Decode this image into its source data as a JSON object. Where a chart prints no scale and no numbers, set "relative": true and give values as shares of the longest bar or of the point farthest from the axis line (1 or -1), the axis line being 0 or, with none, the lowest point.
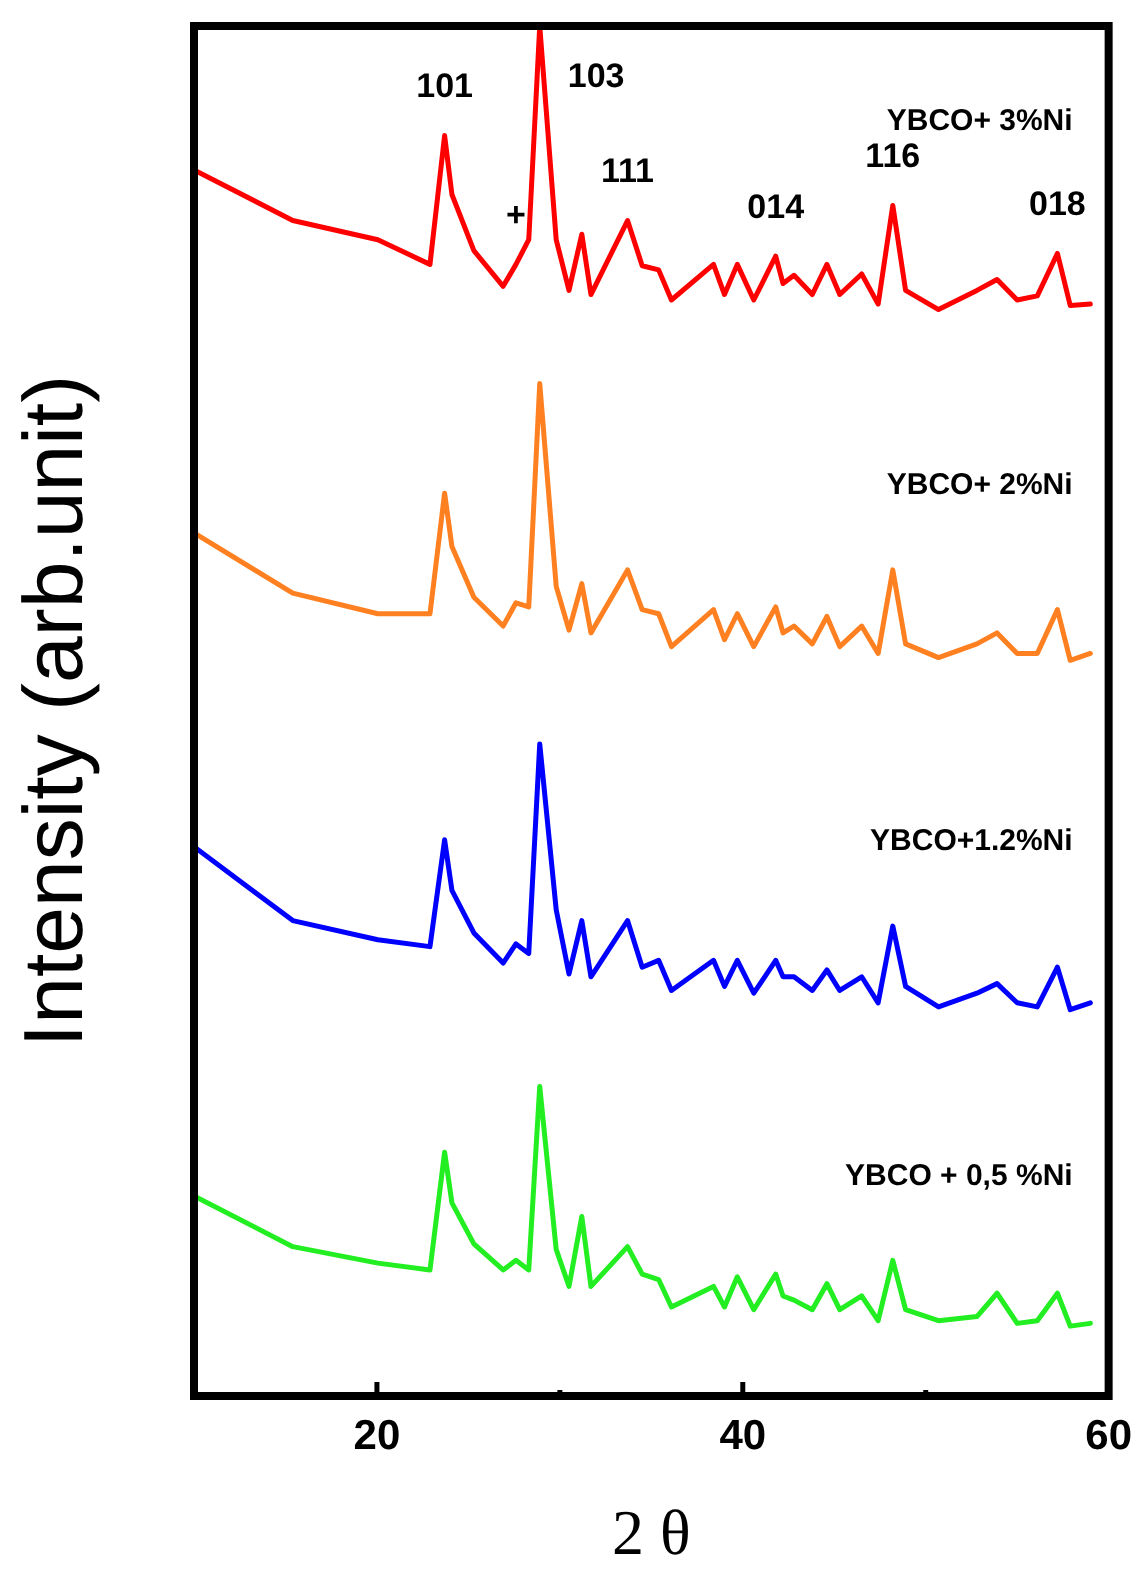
{
  "chart_data": {
    "type": "line",
    "relative": true,
    "xlabel": "2 θ",
    "ylabel": "Intensity (arb.unit)",
    "xlim": [
      10,
      60
    ],
    "xticks": [
      20,
      {
        "value": 30,
        "label": null
      },
      40,
      {
        "value": 50,
        "label": null
      },
      60
    ],
    "x": [
      10.0,
      15.4,
      20.05,
      22.9,
      23.7,
      24.1,
      25.3,
      26.9,
      27.6,
      28.3,
      28.9,
      29.8,
      30.5,
      31.2,
      31.7,
      33.7,
      34.5,
      35.4,
      36.1,
      38.4,
      39.0,
      39.7,
      40.6,
      41.8,
      42.2,
      42.8,
      43.8,
      44.6,
      45.3,
      46.5,
      47.4,
      48.2,
      48.9,
      50.7,
      52.8,
      53.9,
      55.0,
      56.1,
      57.2,
      57.9,
      59.0
    ],
    "series": [
      {
        "name": "YBCO+ 3%Ni",
        "color": "#ff0000",
        "values": [
          0.895,
          0.858,
          0.844,
          0.826,
          0.92,
          0.877,
          0.836,
          0.81,
          0.826,
          0.844,
          1.0,
          0.844,
          0.807,
          0.848,
          0.804,
          0.858,
          0.825,
          0.822,
          0.8,
          0.826,
          0.804,
          0.826,
          0.8,
          0.832,
          0.812,
          0.818,
          0.804,
          0.826,
          0.804,
          0.819,
          0.797,
          0.869,
          0.807,
          0.793,
          0.807,
          0.815,
          0.8,
          0.803,
          0.834,
          0.796,
          0.797
        ]
      },
      {
        "name": "YBCO+ 2%Ni",
        "color": "#ff8020",
        "values": [
          0.63,
          0.586,
          0.571,
          0.571,
          0.659,
          0.62,
          0.583,
          0.562,
          0.579,
          0.576,
          0.739,
          0.591,
          0.559,
          0.593,
          0.557,
          0.603,
          0.574,
          0.571,
          0.547,
          0.574,
          0.552,
          0.571,
          0.547,
          0.576,
          0.557,
          0.562,
          0.549,
          0.569,
          0.547,
          0.562,
          0.542,
          0.603,
          0.549,
          0.539,
          0.549,
          0.557,
          0.542,
          0.542,
          0.574,
          0.537,
          0.542
        ]
      },
      {
        "name": "YBCO+1.2%Ni",
        "color": "#0000ff",
        "values": [
          0.401,
          0.347,
          0.333,
          0.328,
          0.406,
          0.369,
          0.338,
          0.316,
          0.33,
          0.323,
          0.476,
          0.355,
          0.308,
          0.347,
          0.306,
          0.347,
          0.313,
          0.318,
          0.296,
          0.318,
          0.299,
          0.318,
          0.294,
          0.318,
          0.306,
          0.306,
          0.296,
          0.311,
          0.296,
          0.306,
          0.287,
          0.343,
          0.299,
          0.284,
          0.294,
          0.301,
          0.287,
          0.284,
          0.313,
          0.282,
          0.287
        ]
      },
      {
        "name": "YBCO + 0,5 %Ni",
        "color": "#22ee22",
        "values": [
          0.146,
          0.109,
          0.097,
          0.092,
          0.178,
          0.141,
          0.111,
          0.092,
          0.099,
          0.092,
          0.226,
          0.107,
          0.08,
          0.131,
          0.08,
          0.109,
          0.089,
          0.085,
          0.065,
          0.08,
          0.065,
          0.087,
          0.063,
          0.089,
          0.073,
          0.07,
          0.063,
          0.082,
          0.063,
          0.073,
          0.055,
          0.099,
          0.063,
          0.055,
          0.058,
          0.075,
          0.053,
          0.055,
          0.075,
          0.051,
          0.053
        ]
      }
    ],
    "annotations": [
      {
        "text": "101",
        "x": 23.7,
        "y": 0.92
      },
      {
        "text": "103",
        "x": 28.9,
        "y": 1.0
      },
      {
        "text": "+",
        "x": 27.6,
        "y": 0.826
      },
      {
        "text": "111",
        "x": 33.7,
        "y": 0.858
      },
      {
        "text": "014",
        "x": 41.8,
        "y": 0.832
      },
      {
        "text": "116",
        "x": 48.2,
        "y": 0.869
      },
      {
        "text": "018",
        "x": 57.2,
        "y": 0.834
      }
    ],
    "legend": false,
    "marker": "none",
    "line_style": "solid"
  }
}
